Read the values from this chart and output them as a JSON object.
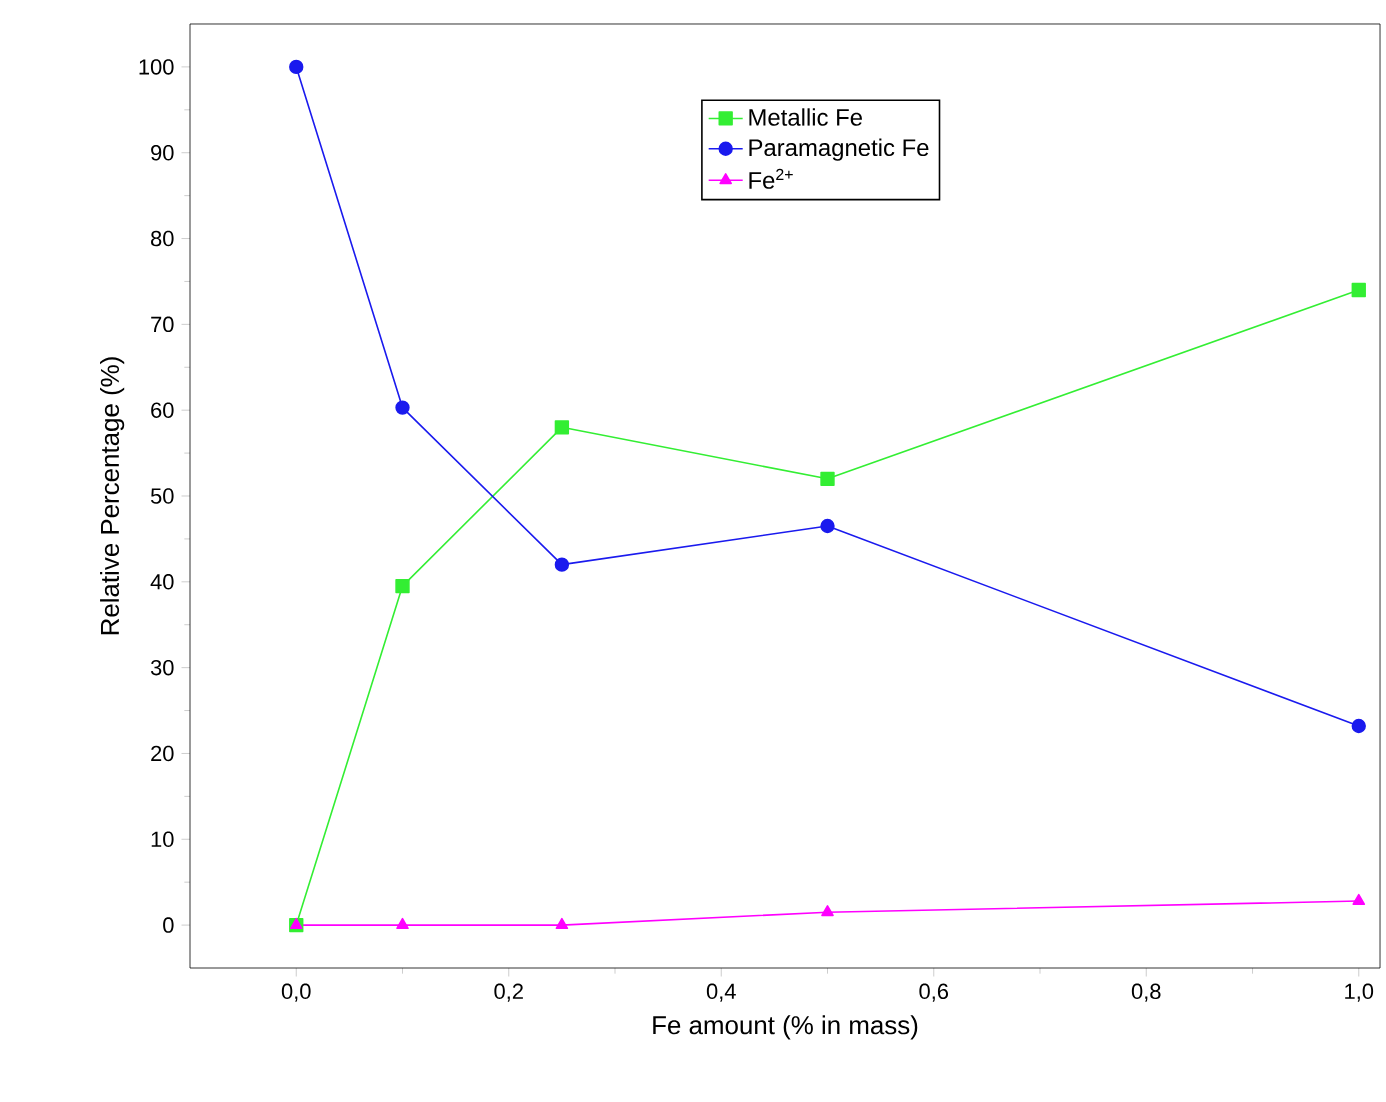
{
  "chart_data": {
    "type": "line",
    "xlabel": "Fe amount (% in mass)",
    "ylabel": "Relative Percentage (%)",
    "x": [
      0,
      0.1,
      0.25,
      0.5,
      1.0
    ],
    "series": [
      {
        "name": "Metallic Fe",
        "color": "#33ee33",
        "marker": "square",
        "values": [
          0,
          39.5,
          58,
          52,
          74
        ]
      },
      {
        "name": "Paramagnetic Fe",
        "color": "#1a1aee",
        "marker": "circle",
        "values": [
          100,
          60.3,
          42,
          46.5,
          23.2
        ]
      },
      {
        "name": "Fe$^{2+}$",
        "color": "#ff00ff",
        "marker": "triangle",
        "values": [
          0,
          0,
          0,
          1.5,
          2.8
        ]
      }
    ],
    "xlim": [
      -0.1,
      1.02
    ],
    "ylim": [
      -5,
      105
    ],
    "xticks": [
      {
        "value": 0,
        "label": "0,0"
      },
      {
        "value": 0.2,
        "label": "0,2"
      },
      {
        "value": 0.4,
        "label": "0,4"
      },
      {
        "value": 0.6,
        "label": "0,6"
      },
      {
        "value": 0.8,
        "label": "0,8"
      },
      {
        "value": 1.0,
        "label": "1,0"
      }
    ],
    "yticks": [
      0,
      10,
      20,
      30,
      40,
      50,
      60,
      70,
      80,
      90,
      100
    ],
    "grid": false,
    "legend": "top",
    "line_style": "solid"
  }
}
